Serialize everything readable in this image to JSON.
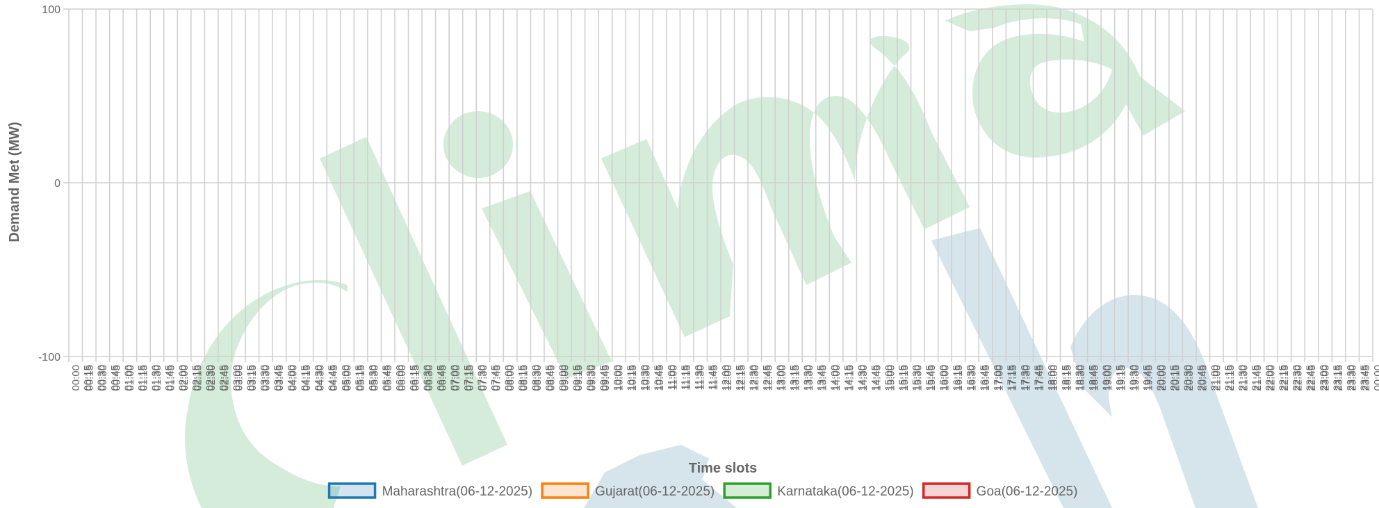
{
  "chart_data": {
    "type": "line",
    "title": "",
    "xlabel": "Time slots",
    "ylabel": "Demand Met (MW)",
    "ylim": [
      -100,
      100
    ],
    "yticks": [
      100,
      0,
      -100
    ],
    "grid": true,
    "legend_position": "bottom",
    "x_start_times": [
      "00:00",
      "00:15",
      "00:30",
      "00:45",
      "01:00",
      "01:15",
      "01:30",
      "01:45",
      "02:00",
      "02:15",
      "02:30",
      "02:45",
      "03:00",
      "03:15",
      "03:30",
      "03:45",
      "04:00",
      "04:15",
      "04:30",
      "04:45",
      "05:00",
      "05:15",
      "05:30",
      "05:45",
      "06:00",
      "06:15",
      "06:30",
      "06:45",
      "07:00",
      "07:15",
      "07:30",
      "07:45",
      "08:00",
      "08:15",
      "08:30",
      "08:45",
      "09:00",
      "09:15",
      "09:30",
      "09:45",
      "10:00",
      "10:15",
      "10:30",
      "10:45",
      "11:00",
      "11:15",
      "11:30",
      "11:45",
      "12:00",
      "12:15",
      "12:30",
      "12:45",
      "13:00",
      "13:15",
      "13:30",
      "13:45",
      "14:00",
      "14:15",
      "14:30",
      "14:45",
      "15:00",
      "15:15",
      "15:30",
      "15:45",
      "16:00",
      "16:15",
      "16:30",
      "16:45",
      "17:00",
      "17:15",
      "17:30",
      "17:45",
      "18:00",
      "18:15",
      "18:30",
      "18:45",
      "19:00",
      "19:15",
      "19:30",
      "19:45",
      "20:00",
      "20:15",
      "20:30",
      "20:45",
      "21:00",
      "21:15",
      "21:30",
      "21:45",
      "22:00",
      "22:15",
      "22:30",
      "22:45",
      "23:00",
      "23:15",
      "23:30",
      "23:45"
    ],
    "x_end_times": [
      "00:15",
      "00:30",
      "00:45",
      "01:00",
      "01:15",
      "01:30",
      "01:45",
      "02:00",
      "02:15",
      "02:30",
      "02:45",
      "03:00",
      "03:15",
      "03:30",
      "03:45",
      "04:00",
      "04:15",
      "04:30",
      "04:45",
      "05:00",
      "05:15",
      "05:30",
      "05:45",
      "06:00",
      "06:15",
      "06:30",
      "06:45",
      "07:00",
      "07:15",
      "07:30",
      "07:45",
      "08:00",
      "08:15",
      "08:30",
      "08:45",
      "09:00",
      "09:15",
      "09:30",
      "09:45",
      "10:00",
      "10:15",
      "10:30",
      "10:45",
      "11:00",
      "11:15",
      "11:30",
      "11:45",
      "12:00",
      "12:15",
      "12:30",
      "12:45",
      "13:00",
      "13:15",
      "13:30",
      "13:45",
      "14:00",
      "14:15",
      "14:30",
      "14:45",
      "15:00",
      "15:15",
      "15:30",
      "15:45",
      "16:00",
      "16:15",
      "16:30",
      "16:45",
      "17:00",
      "17:15",
      "17:30",
      "17:45",
      "18:00",
      "18:15",
      "18:30",
      "18:45",
      "19:00",
      "19:15",
      "19:30",
      "19:45",
      "20:00",
      "20:15",
      "20:30",
      "20:45",
      "21:00",
      "21:15",
      "21:30",
      "21:45",
      "22:00",
      "22:15",
      "22:30",
      "22:45",
      "23:00",
      "23:15",
      "23:30",
      "23:45",
      "00:00"
    ],
    "series": [
      {
        "name": "Maharashtra(06-12-2025)",
        "color": "#1f77b4",
        "values": []
      },
      {
        "name": "Gujarat(06-12-2025)",
        "color": "#ff7f0e",
        "values": []
      },
      {
        "name": "Karnataka(06-12-2025)",
        "color": "#2ca02c",
        "values": []
      },
      {
        "name": "Goa(06-12-2025)",
        "color": "#d62728",
        "values": []
      }
    ]
  },
  "colors": {
    "grid": "#d0d0d0",
    "axis_text": "#666666",
    "watermark_green": "#d4ecd9",
    "watermark_blue": "#d6e4ec"
  }
}
